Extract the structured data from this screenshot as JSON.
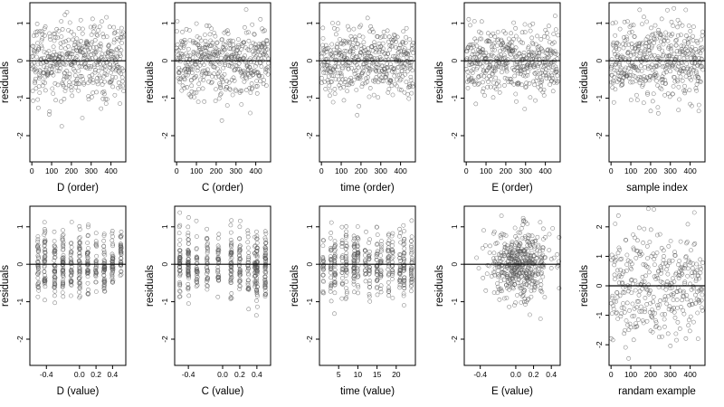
{
  "chart_data": [
    {
      "type": "scatter",
      "xlabel": "D (order)",
      "ylabel": "residuals",
      "xlim": [
        -10,
        475
      ],
      "ylim": [
        -2.7,
        1.55
      ],
      "xticks": [
        0,
        100,
        200,
        300,
        400
      ],
      "xticklabels": [
        "0",
        "100",
        "200",
        "300",
        "400"
      ],
      "yticks": [
        -2,
        -1,
        0,
        1
      ],
      "yticklabels": [
        "-2",
        "-1",
        "0",
        "1"
      ],
      "hline": 0,
      "n_points": 450,
      "spread": 0.5
    },
    {
      "type": "scatter",
      "xlabel": "C (order)",
      "ylabel": "residuals",
      "xlim": [
        -10,
        475
      ],
      "ylim": [
        -2.7,
        1.55
      ],
      "xticks": [
        0,
        100,
        200,
        300,
        400
      ],
      "xticklabels": [
        "0",
        "100",
        "200",
        "300",
        "400"
      ],
      "yticks": [
        -2,
        -1,
        0,
        1
      ],
      "yticklabels": [
        "-2",
        "-1",
        "0",
        "1"
      ],
      "hline": 0,
      "n_points": 450,
      "spread": 0.45
    },
    {
      "type": "scatter",
      "xlabel": "time (order)",
      "ylabel": "residuals",
      "xlim": [
        -10,
        475
      ],
      "ylim": [
        -2.7,
        1.55
      ],
      "xticks": [
        0,
        100,
        200,
        300,
        400
      ],
      "xticklabels": [
        "0",
        "100",
        "200",
        "300",
        "400"
      ],
      "yticks": [
        -2,
        -1,
        0,
        1
      ],
      "yticklabels": [
        "-2",
        "-1",
        "0",
        "1"
      ],
      "hline": 0,
      "n_points": 450,
      "spread": 0.45
    },
    {
      "type": "scatter",
      "xlabel": "E (order)",
      "ylabel": "residuals",
      "xlim": [
        -10,
        475
      ],
      "ylim": [
        -2.7,
        1.55
      ],
      "xticks": [
        0,
        100,
        200,
        300,
        400
      ],
      "xticklabels": [
        "0",
        "100",
        "200",
        "300",
        "400"
      ],
      "yticks": [
        -2,
        -1,
        0,
        1
      ],
      "yticklabels": [
        "-2",
        "-1",
        "0",
        "1"
      ],
      "hline": 0,
      "n_points": 450,
      "spread": 0.45
    },
    {
      "type": "scatter",
      "xlabel": "sample index",
      "ylabel": "residuals",
      "xlim": [
        -10,
        475
      ],
      "ylim": [
        -2.7,
        1.55
      ],
      "xticks": [
        0,
        100,
        200,
        300,
        400
      ],
      "xticklabels": [
        "0",
        "100",
        "200",
        "300",
        "400"
      ],
      "yticks": [
        -2,
        -1,
        0,
        1
      ],
      "yticklabels": [
        "-2",
        "-1",
        "0",
        "1"
      ],
      "hline": 0,
      "n_points": 450,
      "spread": 0.5
    },
    {
      "type": "scatter",
      "xlabel": "D (value)",
      "ylabel": "residuals",
      "xlim": [
        -0.6,
        0.56
      ],
      "ylim": [
        -2.7,
        1.55
      ],
      "xticks": [
        -0.4,
        0.0,
        0.2,
        0.4
      ],
      "xticklabels": [
        "-0.4",
        "0.0",
        "0.2",
        "0.4"
      ],
      "yticks": [
        -2,
        -1,
        0,
        1
      ],
      "yticklabels": [
        "-2",
        "-1",
        "0",
        "1"
      ],
      "hline": 0,
      "n_points": 450,
      "x_levels": [
        -0.5,
        -0.42,
        -0.3,
        -0.2,
        -0.1,
        0.0,
        0.1,
        0.2,
        0.3,
        0.4,
        0.5
      ],
      "spread": 0.45
    },
    {
      "type": "scatter",
      "xlabel": "C (value)",
      "ylabel": "residuals",
      "xlim": [
        -0.56,
        0.56
      ],
      "ylim": [
        -2.7,
        1.55
      ],
      "xticks": [
        -0.4,
        0.0,
        0.2,
        0.4
      ],
      "xticklabels": [
        "-0.4",
        "0.0",
        "0.2",
        "0.4"
      ],
      "yticks": [
        -2,
        -1,
        0,
        1
      ],
      "yticklabels": [
        "-2",
        "-1",
        "0",
        "1"
      ],
      "hline": 0,
      "n_points": 450,
      "x_levels": [
        -0.5,
        -0.4,
        -0.3,
        -0.18,
        -0.05,
        0.1,
        0.2,
        0.3,
        0.38,
        0.4,
        0.5
      ],
      "spread": 0.45
    },
    {
      "type": "scatter",
      "xlabel": "time (value)",
      "ylabel": "residuals",
      "xlim": [
        0,
        25
      ],
      "ylim": [
        -2.7,
        1.55
      ],
      "xticks": [
        5,
        10,
        15,
        20
      ],
      "xticklabels": [
        "5",
        "10",
        "15",
        "20"
      ],
      "yticks": [
        -2,
        -1,
        0,
        1
      ],
      "yticklabels": [
        "-2",
        "-1",
        "0",
        "1"
      ],
      "hline": 0,
      "n_points": 450,
      "x_levels": [
        1,
        3,
        4,
        6,
        7,
        9,
        10,
        12,
        13,
        15,
        16,
        18,
        19,
        21,
        22,
        24
      ],
      "spread": 0.45
    },
    {
      "type": "scatter",
      "xlabel": "E (value)",
      "ylabel": "residuals",
      "xlim": [
        -0.58,
        0.5
      ],
      "ylim": [
        -2.7,
        1.55
      ],
      "xticks": [
        -0.4,
        0.0,
        0.2,
        0.4
      ],
      "xticklabels": [
        "-0.4",
        "0.0",
        "0.2",
        "0.4"
      ],
      "yticks": [
        -2,
        -1,
        0,
        1
      ],
      "yticklabels": [
        "-2",
        "-1",
        "0",
        "1"
      ],
      "hline": 0,
      "n_points": 450,
      "x_center": 0.05,
      "x_spread": 0.17,
      "spread": 0.45
    },
    {
      "type": "scatter",
      "xlabel": "randam example",
      "ylabel": "residuals",
      "xlim": [
        -10,
        475
      ],
      "ylim": [
        -2.7,
        2.7
      ],
      "xticks": [
        0,
        100,
        200,
        300,
        400
      ],
      "xticklabels": [
        "0",
        "100",
        "200",
        "300",
        "400"
      ],
      "yticks": [
        -2,
        -1,
        0,
        1,
        2
      ],
      "yticklabels": [
        "-2",
        "-1",
        "0",
        "1",
        "2"
      ],
      "hline": 0,
      "n_points": 350,
      "spread": 0.95
    }
  ]
}
